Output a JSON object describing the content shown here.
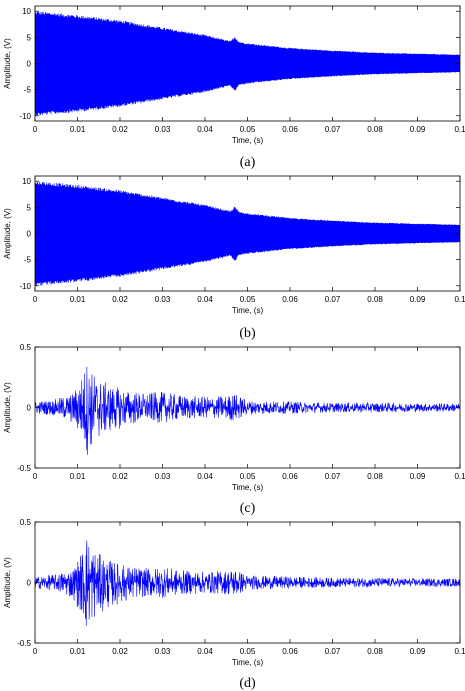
{
  "chart_data": [
    {
      "type": "line",
      "panel": "a",
      "caption": "(a)",
      "xlabel": "Time, (s)",
      "ylabel": "Amplitude, (V)",
      "xlim": [
        0,
        0.1
      ],
      "ylim": [
        -11,
        11
      ],
      "xticks": [
        0,
        0.01,
        0.02,
        0.03,
        0.04,
        0.05,
        0.06,
        0.07,
        0.08,
        0.09,
        0.1
      ],
      "xtick_labels": [
        "0",
        "0.01",
        "0.02",
        "0.03",
        "0.04",
        "0.05",
        "0.06",
        "0.07",
        "0.08",
        "0.09",
        "0.1"
      ],
      "yticks": [
        -10,
        -5,
        0,
        5,
        10
      ],
      "ytick_labels": [
        "-10",
        "-5",
        "0",
        "5",
        "10"
      ],
      "grid": false,
      "line_color": "#0000ff",
      "envelope": {
        "x": [
          0,
          0.001,
          0.01,
          0.02,
          0.03,
          0.04,
          0.046,
          0.047,
          0.048,
          0.05,
          0.06,
          0.07,
          0.08,
          0.09,
          0.1
        ],
        "upper": [
          10,
          10,
          9.3,
          8.3,
          6.9,
          5.5,
          4.3,
          5.2,
          4.2,
          3.9,
          3.0,
          2.5,
          2.1,
          1.9,
          1.7
        ],
        "lower": [
          -10,
          -10,
          -9.3,
          -8.3,
          -6.9,
          -5.5,
          -4.3,
          -5.4,
          -4.2,
          -3.9,
          -3.0,
          -2.5,
          -2.1,
          -1.9,
          -1.7
        ]
      }
    },
    {
      "type": "line",
      "panel": "b",
      "caption": "(b)",
      "xlabel": "Time, (s)",
      "ylabel": "Amplitude, (V)",
      "xlim": [
        0,
        0.1
      ],
      "ylim": [
        -11,
        11
      ],
      "xticks": [
        0,
        0.01,
        0.02,
        0.03,
        0.04,
        0.05,
        0.06,
        0.07,
        0.08,
        0.09,
        0.1
      ],
      "xtick_labels": [
        "0",
        "0.01",
        "0.02",
        "0.03",
        "0.04",
        "0.05",
        "0.06",
        "0.07",
        "0.08",
        "0.09",
        "0.1"
      ],
      "yticks": [
        -10,
        -5,
        0,
        5,
        10
      ],
      "ytick_labels": [
        "-10",
        "-5",
        "0",
        "5",
        "10"
      ],
      "grid": false,
      "line_color": "#0000ff",
      "envelope": {
        "x": [
          0,
          0.001,
          0.01,
          0.02,
          0.03,
          0.04,
          0.046,
          0.047,
          0.048,
          0.05,
          0.06,
          0.07,
          0.08,
          0.09,
          0.1
        ],
        "upper": [
          10,
          10,
          9.3,
          8.3,
          6.9,
          5.5,
          4.3,
          5.2,
          4.2,
          3.9,
          3.0,
          2.5,
          2.1,
          1.9,
          1.7
        ],
        "lower": [
          -10,
          -10,
          -9.3,
          -8.3,
          -6.9,
          -5.5,
          -4.3,
          -5.4,
          -4.2,
          -3.9,
          -3.0,
          -2.5,
          -2.1,
          -1.9,
          -1.7
        ]
      }
    },
    {
      "type": "line",
      "panel": "c",
      "caption": "(c)",
      "xlabel": "Time, (s)",
      "ylabel": "Amplitude, (V)",
      "xlim": [
        0,
        0.1
      ],
      "ylim": [
        -0.5,
        0.5
      ],
      "xticks": [
        0,
        0.01,
        0.02,
        0.03,
        0.04,
        0.05,
        0.06,
        0.07,
        0.08,
        0.09,
        0.1
      ],
      "xtick_labels": [
        "0",
        "0.01",
        "0.02",
        "0.03",
        "0.04",
        "0.05",
        "0.06",
        "0.07",
        "0.08",
        "0.09",
        "0.1"
      ],
      "yticks": [
        -0.5,
        0,
        0.5
      ],
      "ytick_labels": [
        "-0.5",
        "0",
        "0.5"
      ],
      "grid": false,
      "line_color": "#0000ff",
      "envelope": {
        "x": [
          0,
          0.005,
          0.009,
          0.0115,
          0.012,
          0.013,
          0.015,
          0.018,
          0.022,
          0.026,
          0.03,
          0.035,
          0.04,
          0.045,
          0.047,
          0.05,
          0.06,
          0.07,
          0.08,
          0.09,
          0.1
        ],
        "upper": [
          0.05,
          0.07,
          0.12,
          0.3,
          0.43,
          0.32,
          0.24,
          0.18,
          0.14,
          0.12,
          0.13,
          0.1,
          0.09,
          0.1,
          0.12,
          0.06,
          0.05,
          0.04,
          0.04,
          0.035,
          0.035
        ],
        "lower": [
          -0.05,
          -0.07,
          -0.14,
          -0.3,
          -0.42,
          -0.35,
          -0.26,
          -0.2,
          -0.15,
          -0.12,
          -0.13,
          -0.1,
          -0.09,
          -0.1,
          -0.12,
          -0.06,
          -0.05,
          -0.04,
          -0.04,
          -0.035,
          -0.035
        ]
      }
    },
    {
      "type": "line",
      "panel": "d",
      "caption": "(d)",
      "xlabel": "Time, (s)",
      "ylabel": "Amplitude, (V)",
      "xlim": [
        0,
        0.1
      ],
      "ylim": [
        -0.5,
        0.5
      ],
      "xticks": [
        0,
        0.01,
        0.02,
        0.03,
        0.04,
        0.05,
        0.06,
        0.07,
        0.08,
        0.09,
        0.1
      ],
      "xtick_labels": [
        "0",
        "0.01",
        "0.02",
        "0.03",
        "0.04",
        "0.05",
        "0.06",
        "0.07",
        "0.08",
        "0.09",
        "0.1"
      ],
      "yticks": [
        -0.5,
        0,
        0.5
      ],
      "ytick_labels": [
        "-0.5",
        "0",
        "0.5"
      ],
      "grid": false,
      "line_color": "#0000ff",
      "envelope": {
        "x": [
          0,
          0.005,
          0.009,
          0.0115,
          0.012,
          0.013,
          0.015,
          0.018,
          0.022,
          0.026,
          0.03,
          0.035,
          0.04,
          0.045,
          0.047,
          0.05,
          0.06,
          0.07,
          0.08,
          0.09,
          0.1
        ],
        "upper": [
          0.05,
          0.07,
          0.12,
          0.3,
          0.45,
          0.33,
          0.24,
          0.18,
          0.14,
          0.12,
          0.13,
          0.1,
          0.09,
          0.1,
          0.12,
          0.06,
          0.05,
          0.04,
          0.04,
          0.035,
          0.035
        ],
        "lower": [
          -0.05,
          -0.07,
          -0.14,
          -0.3,
          -0.43,
          -0.35,
          -0.26,
          -0.2,
          -0.15,
          -0.12,
          -0.13,
          -0.1,
          -0.09,
          -0.1,
          -0.12,
          -0.06,
          -0.05,
          -0.04,
          -0.04,
          -0.035,
          -0.035
        ]
      }
    }
  ]
}
